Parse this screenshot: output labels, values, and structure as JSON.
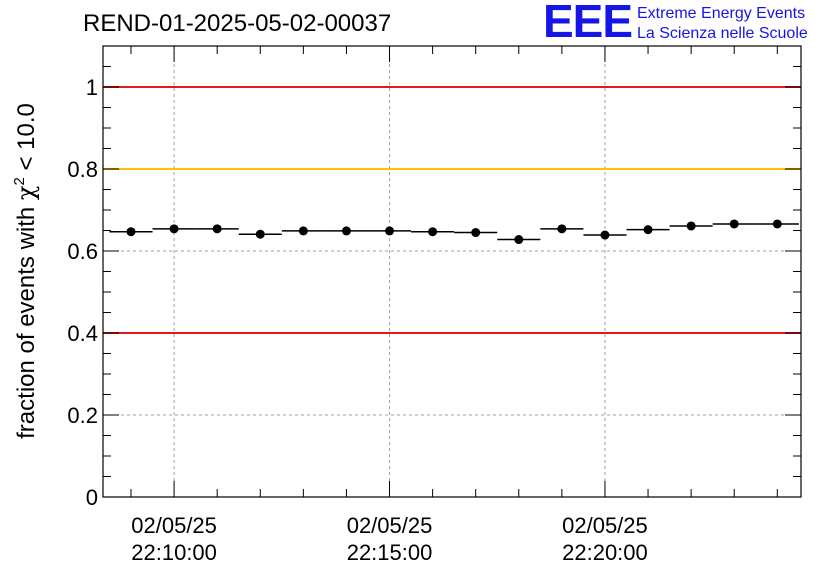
{
  "header": {
    "run_id": "REND-01-2025-05-02-00037"
  },
  "logo": {
    "mark": "EEE",
    "line1": "Extreme Energy Events",
    "line2": "La Scienza nelle Scuole",
    "color": "#1515e6"
  },
  "chart_data": {
    "type": "scatter",
    "title": "REND-01-2025-05-02-00037",
    "ylabel": "fraction of events with",
    "ylabel_symbol": "χ",
    "ylabel_superscript": "2",
    "ylabel_suffix": "< 10.0",
    "xlabel": "",
    "x_unit": "minutes",
    "xlim": [
      8.35,
      24.55
    ],
    "ylim": [
      0,
      1.1
    ],
    "y_ticks": [
      0,
      0.2,
      0.4,
      0.6,
      0.8,
      1
    ],
    "y_tick_labels": [
      "0",
      "0.2",
      "0.4",
      "0.6",
      "0.8",
      "1"
    ],
    "x_ticks": [
      {
        "x": 10,
        "label_date": "02/05/25",
        "label_time": "22:10:00"
      },
      {
        "x": 15,
        "label_date": "02/05/25",
        "label_time": "22:15:00"
      },
      {
        "x": 20,
        "label_date": "02/05/25",
        "label_time": "22:20:00"
      }
    ],
    "x_minor_step": 1,
    "grid": true,
    "reference_lines": [
      {
        "y": 1.0,
        "color": "#e41a1a"
      },
      {
        "y": 0.8,
        "color": "#ffc000"
      },
      {
        "y": 0.4,
        "color": "#e41a1a"
      }
    ],
    "bin_width": 1,
    "series": [
      {
        "name": "fraction",
        "color": "#000000",
        "x": [
          9,
          10,
          11,
          12,
          13,
          14,
          15,
          16,
          17,
          18,
          19,
          20,
          21,
          22,
          23,
          24
        ],
        "y": [
          0.647,
          0.654,
          0.654,
          0.641,
          0.649,
          0.649,
          0.649,
          0.647,
          0.645,
          0.628,
          0.654,
          0.639,
          0.652,
          0.661,
          0.666,
          0.666
        ]
      }
    ]
  }
}
